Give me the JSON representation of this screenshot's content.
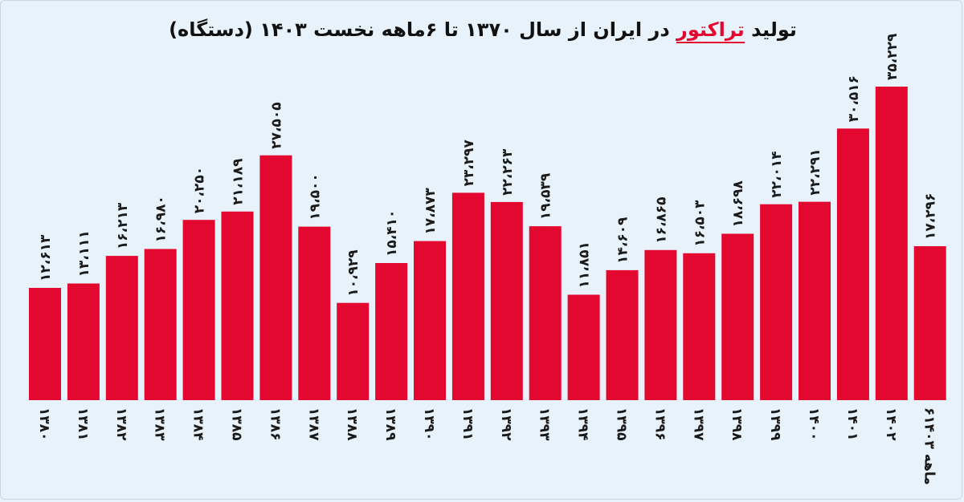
{
  "title": {
    "prefix": "تولید ",
    "highlight": "تراکتور",
    "suffix": " در ایران از سال ۱۳۷۰ تا ۶ماهه نخست ۱۴۰۳ (دستگاه)"
  },
  "colors": {
    "bar": "#e3082f",
    "highlight": "#e3082f",
    "background": "#e8f2fa"
  },
  "chart_data": {
    "type": "bar",
    "title": "تولید تراکتور در ایران از سال ۱۳۷۰ تا ۶ماهه نخست ۱۴۰۳ (دستگاه)",
    "categories": [
      "۱۳۸۰",
      "۱۳۸۱",
      "۱۳۸۲",
      "۱۳۸۳",
      "۱۳۸۴",
      "۱۳۸۵",
      "۱۳۸۶",
      "۱۳۸۷",
      "۱۳۸۸",
      "۱۳۸۹",
      "۱۳۹۰",
      "۱۳۹۱",
      "۱۳۹۲",
      "۱۳۹۳",
      "۱۳۹۴",
      "۱۳۹۵",
      "۱۳۹۶",
      "۱۳۹۷",
      "۱۳۹۸",
      "۱۳۹۹",
      "۱۴۰۰",
      "۱۴۰۱",
      "۱۴۰۲",
      "۶ماهه ۱۴۰۳"
    ],
    "values": [
      12613,
      13111,
      16213,
      16980,
      20250,
      21189,
      27505,
      19500,
      10929,
      15410,
      17873,
      23297,
      22263,
      19539,
      11851,
      14609,
      16865,
      16503,
      18698,
      22014,
      22291,
      30516,
      35229,
      17296
    ],
    "value_labels": [
      "۱۲،۶۱۳",
      "۱۳،۱۱۱",
      "۱۶،۲۱۳",
      "۱۶،۹۸۰",
      "۲۰،۲۵۰",
      "۲۱،۱۸۹",
      "۲۷،۵۰۵",
      "۱۹،۵۰۰",
      "۱۰،۹۲۹",
      "۱۵،۴۱۰",
      "۱۷،۸۷۳",
      "۲۳،۲۹۷",
      "۲۲،۲۶۳",
      "۱۹،۵۳۹",
      "۱۱،۸۵۱",
      "۱۴،۶۰۹",
      "۱۶،۸۶۵",
      "۱۶،۵۰۳",
      "۱۸،۶۹۸",
      "۲۲،۰۱۴",
      "۲۲،۲۹۱",
      "۳۰،۵۱۶",
      "۳۵،۲۲۹",
      "۱۷،۲۹۶"
    ],
    "ylim": [
      0,
      35229
    ],
    "grid": false,
    "legend": "none"
  }
}
